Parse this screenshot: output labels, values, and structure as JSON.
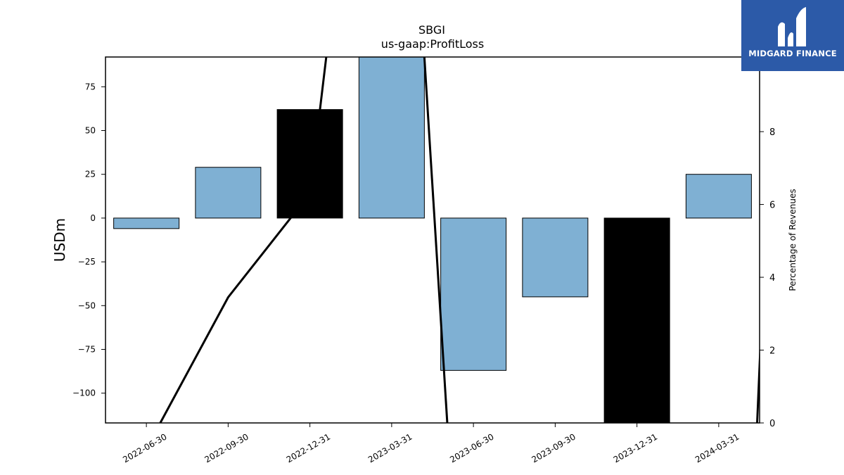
{
  "chart_data": {
    "type": "bar",
    "title": "SBGI",
    "subtitle": "us-gaap:ProfitLoss",
    "ylabel": "USDm",
    "y2label": "Percentage of Revenues",
    "categories": [
      "2022-06-30",
      "2022-09-30",
      "2022-12-31",
      "2023-03-31",
      "2023-06-30",
      "2023-09-30",
      "2023-12-31",
      "2024-03-31"
    ],
    "values": [
      -6,
      29,
      62,
      92,
      -87,
      -45,
      -117,
      25
    ],
    "bar_colors": [
      "#7fb0d3",
      "#7fb0d3",
      "#000000",
      "#7fb0d3",
      "#7fb0d3",
      "#7fb0d3",
      "#000000",
      "#7fb0d3"
    ],
    "ylim": [
      -117,
      92
    ],
    "yticks": [
      75,
      50,
      25,
      0,
      -25,
      -50,
      -75,
      -100
    ],
    "ytick_labels": [
      "75",
      "50",
      "25",
      "0",
      "−25",
      "−50",
      "−75",
      "−100"
    ],
    "y2lim": [
      0,
      10.05
    ],
    "y2ticks": [
      0,
      2,
      4,
      6,
      8
    ],
    "line_segments": [
      [
        [
          0.17,
          0.0
        ],
        [
          1.0,
          3.45
        ],
        [
          2.0,
          6.3
        ],
        [
          2.2,
          10.05
        ]
      ],
      [
        [
          3.4,
          10.05
        ],
        [
          3.68,
          0.0
        ]
      ],
      [
        [
          7.47,
          0.0
        ],
        [
          7.53,
          3.15
        ]
      ]
    ]
  },
  "logo": {
    "text": "MIDGARD FINANCE"
  }
}
